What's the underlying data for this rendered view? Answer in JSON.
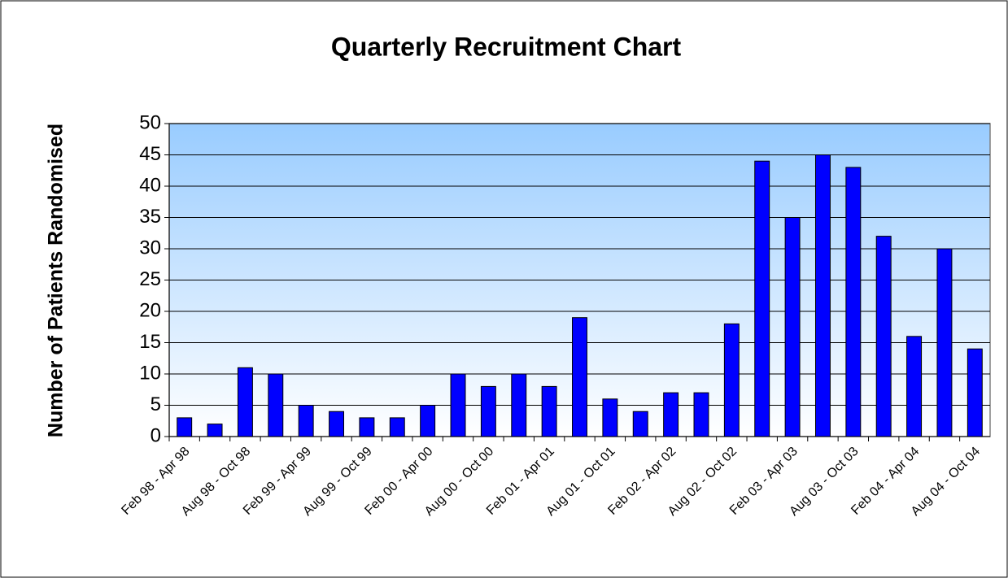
{
  "chart_data": {
    "type": "bar",
    "title": "Quarterly Recruitment Chart",
    "y_label": "Number of Patients Randomised",
    "categories": [
      "Feb 98 - Apr 98",
      null,
      "Aug 98 - Oct 98",
      null,
      "Feb 99 - Apr 99",
      null,
      "Aug 99 - Oct 99",
      null,
      "Feb 00 - Apr 00",
      null,
      "Aug 00 - Oct 00",
      null,
      "Feb 01 - Apr 01",
      null,
      "Aug 01 - Oct 01",
      null,
      "Feb 02 - Apr 02",
      null,
      "Aug 02 - Oct 02",
      null,
      "Feb 03 - Apr 03",
      null,
      "Aug 03 - Oct 03",
      null,
      "Feb 04 - Apr 04",
      null,
      "Aug 04 - Oct 04"
    ],
    "values": [
      3,
      2,
      11,
      10,
      5,
      4,
      3,
      3,
      5,
      10,
      8,
      10,
      8,
      19,
      6,
      4,
      7,
      7,
      18,
      44,
      35,
      45,
      43,
      32,
      16,
      30,
      14
    ],
    "color": "#0000ff",
    "ylim": [
      0,
      50
    ],
    "yticks": [
      0,
      5,
      10,
      15,
      20,
      25,
      30,
      35,
      40,
      45,
      50
    ],
    "grid": true
  }
}
